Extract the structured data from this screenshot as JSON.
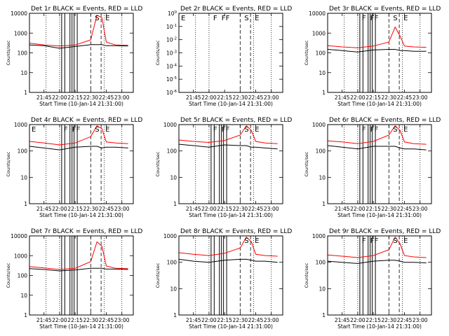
{
  "chart_data": {
    "type": "line",
    "shared_x": {
      "ticks": [
        "21:45",
        "22:00",
        "22:15",
        "22:30",
        "22:45",
        "23:00"
      ],
      "start": "21:31",
      "end": "23:11",
      "xlabel": "Start Time (10-Jan-14 21:31:00)"
    },
    "ylabel": "Counts/sec",
    "colors": {
      "events": "#000000",
      "lld": "#ff0000"
    },
    "dotted_lines_x": [
      "21:47",
      "22:00",
      "22:43",
      "23:00"
    ],
    "solid_lines_x": [
      "22:02",
      "22:05",
      "22:10",
      "22:12",
      "22:14",
      "22:17"
    ],
    "dashed_lines_x": [
      "22:30",
      "22:40"
    ],
    "panels": [
      {
        "title": "Det 1r BLACK = Events, RED = LLD",
        "yticks": [
          "1",
          "10",
          "100",
          "1000",
          "10000"
        ],
        "ylim": [
          1,
          10000
        ],
        "letters": [
          {
            "t": "S",
            "x": "22:32"
          },
          {
            "t": "E",
            "x": "22:42"
          }
        ],
        "events": [
          [
            21.52,
            250
          ],
          [
            21.75,
            230
          ],
          [
            22.0,
            170
          ],
          [
            22.25,
            210
          ],
          [
            22.5,
            260
          ],
          [
            22.6,
            260
          ],
          [
            22.68,
            260
          ],
          [
            22.75,
            230
          ],
          [
            22.9,
            230
          ],
          [
            23.1,
            220
          ]
        ],
        "lld": [
          [
            21.52,
            310
          ],
          [
            21.75,
            250
          ],
          [
            22.0,
            220
          ],
          [
            22.25,
            250
          ],
          [
            22.5,
            450
          ],
          [
            22.6,
            8000
          ],
          [
            22.68,
            6000
          ],
          [
            22.75,
            350
          ],
          [
            22.9,
            250
          ],
          [
            23.1,
            240
          ]
        ]
      },
      {
        "title": "Det 2r BLACK = Events, RED = LLD",
        "yticks": [
          "10^0",
          "10^-1",
          "10^-2",
          "10^-3",
          "10^-4",
          "10^-5",
          "10^-6"
        ],
        "ylim": [
          1e-06,
          1
        ],
        "letters": [
          {
            "t": "E",
            "x": "21:31"
          },
          {
            "t": "F",
            "x": "22:02"
          },
          {
            "t": "F",
            "x": "22:10"
          },
          {
            "t": "F",
            "x": "22:14"
          },
          {
            "t": "S",
            "x": "22:32"
          },
          {
            "t": "E",
            "x": "22:42"
          }
        ],
        "events": [],
        "lld": []
      },
      {
        "title": "Det 3r BLACK = Events, RED = LLD",
        "yticks": [
          "1",
          "10",
          "100",
          "1000",
          "10000"
        ],
        "ylim": [
          1,
          10000
        ],
        "letters": [
          {
            "t": "F",
            "x": "22:02"
          },
          {
            "t": "F",
            "x": "22:10"
          },
          {
            "t": "F",
            "x": "22:14"
          },
          {
            "t": "S",
            "x": "22:32"
          },
          {
            "t": "E",
            "x": "22:42"
          }
        ],
        "events": [
          [
            21.52,
            150
          ],
          [
            21.75,
            130
          ],
          [
            22.0,
            110
          ],
          [
            22.25,
            140
          ],
          [
            22.5,
            150
          ],
          [
            22.6,
            150
          ],
          [
            22.68,
            130
          ],
          [
            22.75,
            130
          ],
          [
            22.9,
            120
          ],
          [
            23.1,
            120
          ]
        ],
        "lld": [
          [
            21.52,
            230
          ],
          [
            21.75,
            200
          ],
          [
            22.0,
            180
          ],
          [
            22.25,
            220
          ],
          [
            22.5,
            350
          ],
          [
            22.6,
            2000
          ],
          [
            22.68,
            700
          ],
          [
            22.75,
            220
          ],
          [
            22.9,
            200
          ],
          [
            23.1,
            190
          ]
        ]
      },
      {
        "title": "Det 4r BLACK = Events, RED = LLD",
        "yticks": [
          "1",
          "10",
          "100",
          "1000"
        ],
        "ylim": [
          1,
          1000
        ],
        "letters": [
          {
            "t": "E",
            "x": "21:31"
          },
          {
            "t": "F",
            "x": "22:02"
          },
          {
            "t": "F",
            "x": "22:10"
          },
          {
            "t": "F",
            "x": "22:14"
          },
          {
            "t": "S",
            "x": "22:32"
          },
          {
            "t": "E",
            "x": "22:42"
          }
        ],
        "events": [
          [
            21.52,
            150
          ],
          [
            21.75,
            130
          ],
          [
            22.0,
            110
          ],
          [
            22.25,
            140
          ],
          [
            22.5,
            150
          ],
          [
            22.6,
            150
          ],
          [
            22.68,
            130
          ],
          [
            22.75,
            140
          ],
          [
            22.9,
            140
          ],
          [
            23.1,
            130
          ]
        ],
        "lld": [
          [
            21.52,
            230
          ],
          [
            21.75,
            200
          ],
          [
            22.0,
            170
          ],
          [
            22.25,
            200
          ],
          [
            22.5,
            350
          ],
          [
            22.6,
            900
          ],
          [
            22.68,
            700
          ],
          [
            22.75,
            220
          ],
          [
            22.9,
            200
          ],
          [
            23.1,
            190
          ]
        ]
      },
      {
        "title": "Det 5r BLACK = Events, RED = LLD",
        "yticks": [
          "1",
          "10",
          "100",
          "1000"
        ],
        "ylim": [
          1,
          1000
        ],
        "letters": [
          {
            "t": "F",
            "x": "22:02"
          },
          {
            "t": "F",
            "x": "22:10"
          },
          {
            "t": "F",
            "x": "22:14"
          },
          {
            "t": "S",
            "x": "22:32"
          },
          {
            "t": "E",
            "x": "22:42"
          }
        ],
        "events": [
          [
            21.52,
            180
          ],
          [
            21.75,
            160
          ],
          [
            22.0,
            140
          ],
          [
            22.25,
            170
          ],
          [
            22.5,
            160
          ],
          [
            22.6,
            160
          ],
          [
            22.68,
            140
          ],
          [
            22.75,
            140
          ],
          [
            22.9,
            130
          ],
          [
            23.1,
            120
          ]
        ],
        "lld": [
          [
            21.52,
            260
          ],
          [
            21.75,
            230
          ],
          [
            22.0,
            210
          ],
          [
            22.25,
            250
          ],
          [
            22.5,
            400
          ],
          [
            22.6,
            900
          ],
          [
            22.68,
            600
          ],
          [
            22.75,
            230
          ],
          [
            22.9,
            200
          ],
          [
            23.1,
            190
          ]
        ]
      },
      {
        "title": "Det 6r BLACK = Events, RED = LLD",
        "yticks": [
          "1",
          "10",
          "100",
          "1000"
        ],
        "ylim": [
          1,
          1000
        ],
        "letters": [
          {
            "t": "F",
            "x": "22:02"
          },
          {
            "t": "F",
            "x": "22:10"
          },
          {
            "t": "F",
            "x": "22:14"
          },
          {
            "t": "S",
            "x": "22:32"
          },
          {
            "t": "E",
            "x": "22:42"
          }
        ],
        "events": [
          [
            21.52,
            160
          ],
          [
            21.75,
            140
          ],
          [
            22.0,
            120
          ],
          [
            22.25,
            150
          ],
          [
            22.5,
            150
          ],
          [
            22.6,
            150
          ],
          [
            22.68,
            130
          ],
          [
            22.75,
            120
          ],
          [
            22.9,
            120
          ],
          [
            23.1,
            110
          ]
        ],
        "lld": [
          [
            21.52,
            240
          ],
          [
            21.75,
            220
          ],
          [
            22.0,
            190
          ],
          [
            22.25,
            230
          ],
          [
            22.5,
            400
          ],
          [
            22.6,
            900
          ],
          [
            22.68,
            600
          ],
          [
            22.75,
            220
          ],
          [
            22.9,
            190
          ],
          [
            23.1,
            180
          ]
        ]
      },
      {
        "title": "Det 7r BLACK = Events, RED = LLD",
        "yticks": [
          "1",
          "10",
          "100",
          "1000",
          "10000"
        ],
        "ylim": [
          1,
          10000
        ],
        "letters": [],
        "events": [
          [
            21.52,
            220
          ],
          [
            21.75,
            200
          ],
          [
            22.0,
            170
          ],
          [
            22.25,
            190
          ],
          [
            22.5,
            230
          ],
          [
            22.6,
            230
          ],
          [
            22.68,
            230
          ],
          [
            22.75,
            210
          ],
          [
            22.9,
            210
          ],
          [
            23.1,
            200
          ]
        ],
        "lld": [
          [
            21.52,
            280
          ],
          [
            21.75,
            240
          ],
          [
            22.0,
            200
          ],
          [
            22.25,
            230
          ],
          [
            22.5,
            500
          ],
          [
            22.6,
            5000
          ],
          [
            22.68,
            3000
          ],
          [
            22.75,
            300
          ],
          [
            22.9,
            230
          ],
          [
            23.1,
            220
          ]
        ]
      },
      {
        "title": "Det 8r BLACK = Events, RED = LLD",
        "yticks": [
          "1",
          "10",
          "100",
          "1000"
        ],
        "ylim": [
          1,
          1000
        ],
        "letters": [
          {
            "t": "S",
            "x": "22:32"
          },
          {
            "t": "E",
            "x": "22:42"
          }
        ],
        "events": [
          [
            21.52,
            130
          ],
          [
            21.75,
            110
          ],
          [
            22.0,
            100
          ],
          [
            22.25,
            120
          ],
          [
            22.5,
            130
          ],
          [
            22.6,
            130
          ],
          [
            22.68,
            120
          ],
          [
            22.75,
            110
          ],
          [
            22.9,
            110
          ],
          [
            23.1,
            100
          ]
        ],
        "lld": [
          [
            21.52,
            230
          ],
          [
            21.75,
            200
          ],
          [
            22.0,
            180
          ],
          [
            22.25,
            220
          ],
          [
            22.5,
            350
          ],
          [
            22.6,
            900
          ],
          [
            22.68,
            600
          ],
          [
            22.75,
            200
          ],
          [
            22.9,
            180
          ],
          [
            23.1,
            170
          ]
        ]
      },
      {
        "title": "Det 9r BLACK = Events, RED = LLD",
        "yticks": [
          "1",
          "10",
          "100",
          "1000"
        ],
        "ylim": [
          1,
          1000
        ],
        "letters": [
          {
            "t": "F",
            "x": "22:02"
          },
          {
            "t": "F",
            "x": "22:10"
          },
          {
            "t": "F",
            "x": "22:14"
          },
          {
            "t": "S",
            "x": "22:32"
          },
          {
            "t": "E",
            "x": "22:42"
          }
        ],
        "events": [
          [
            21.52,
            110
          ],
          [
            21.75,
            100
          ],
          [
            22.0,
            90
          ],
          [
            22.25,
            110
          ],
          [
            22.5,
            120
          ],
          [
            22.6,
            120
          ],
          [
            22.68,
            110
          ],
          [
            22.75,
            100
          ],
          [
            22.9,
            100
          ],
          [
            23.1,
            95
          ]
        ],
        "lld": [
          [
            21.52,
            190
          ],
          [
            21.75,
            170
          ],
          [
            22.0,
            150
          ],
          [
            22.25,
            180
          ],
          [
            22.5,
            300
          ],
          [
            22.6,
            900
          ],
          [
            22.68,
            500
          ],
          [
            22.75,
            180
          ],
          [
            22.9,
            160
          ],
          [
            23.1,
            150
          ]
        ]
      }
    ]
  }
}
